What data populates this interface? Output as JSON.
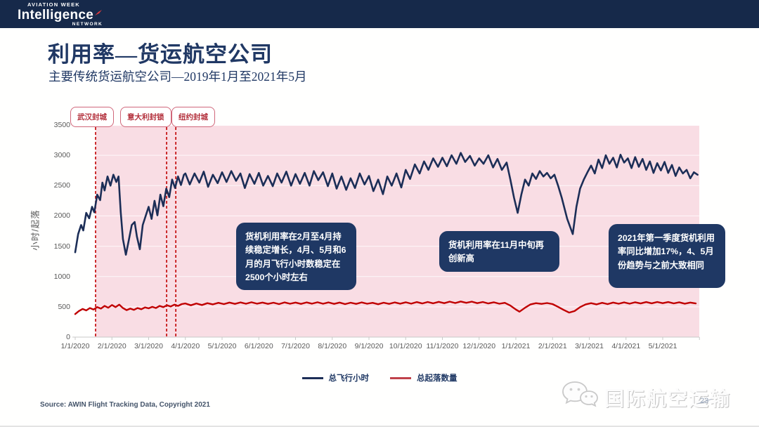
{
  "header": {
    "brand_top": "AVIATION WEEK",
    "brand_main": "Intelligence",
    "brand_bottom": "NETWORK"
  },
  "title": "利用率—货运航空公司",
  "subtitle": "主要传统货运航空公司—2019年1月至2021年5月",
  "colors": {
    "navy": "#1f3864",
    "line_navy": "#1c2e57",
    "red": "#c00000",
    "pink_region": "#f9dde4",
    "header_bg": "#16294a",
    "axis_text": "#595959",
    "grid": "rgba(255,255,255,0.75)"
  },
  "chart_data": {
    "type": "line",
    "title": "利用率—货运航空公司",
    "subtitle": "主要传统货运航空公司—2019年1月至2021年5月",
    "ylabel": "小时/起落",
    "ylim": [
      0,
      3500
    ],
    "y_ticks": [
      0,
      500,
      1000,
      1500,
      2000,
      2500,
      3000,
      3500
    ],
    "x_ticks": [
      "1/1/2020",
      "2/1/2020",
      "3/1/2020",
      "4/1/2020",
      "5/1/2020",
      "6/1/2020",
      "7/1/2020",
      "8/1/2020",
      "9/1/2020",
      "10/1/2020",
      "11/1/2020",
      "12/1/2020",
      "1/1/2021",
      "2/1/2021",
      "3/1/2021",
      "4/1/2021",
      "5/1/2021"
    ],
    "grid": true,
    "legend_position": "bottom",
    "highlight_region": {
      "from_month": 0.555,
      "to_month": 17.0,
      "color": "#f9dde4",
      "meaning": "period since Wuhan lockdown"
    },
    "series": [
      {
        "name": "总飞行小时",
        "color": "#1c2e57",
        "points": [
          [
            0,
            1400
          ],
          [
            0.08,
            1700
          ],
          [
            0.16,
            1850
          ],
          [
            0.22,
            1760
          ],
          [
            0.3,
            2050
          ],
          [
            0.38,
            1960
          ],
          [
            0.46,
            2150
          ],
          [
            0.52,
            2060
          ],
          [
            0.6,
            2350
          ],
          [
            0.68,
            2260
          ],
          [
            0.74,
            2550
          ],
          [
            0.8,
            2420
          ],
          [
            0.88,
            2650
          ],
          [
            0.96,
            2500
          ],
          [
            1.04,
            2680
          ],
          [
            1.12,
            2560
          ],
          [
            1.18,
            2650
          ],
          [
            1.24,
            2060
          ],
          [
            1.3,
            1620
          ],
          [
            1.38,
            1360
          ],
          [
            1.46,
            1600
          ],
          [
            1.54,
            1850
          ],
          [
            1.62,
            1900
          ],
          [
            1.68,
            1660
          ],
          [
            1.76,
            1450
          ],
          [
            1.84,
            1850
          ],
          [
            1.92,
            2000
          ],
          [
            2,
            2150
          ],
          [
            2.08,
            1950
          ],
          [
            2.16,
            2250
          ],
          [
            2.24,
            2010
          ],
          [
            2.32,
            2350
          ],
          [
            2.4,
            2160
          ],
          [
            2.48,
            2450
          ],
          [
            2.56,
            2310
          ],
          [
            2.64,
            2600
          ],
          [
            2.72,
            2460
          ],
          [
            2.8,
            2650
          ],
          [
            2.88,
            2510
          ],
          [
            2.96,
            2680
          ],
          [
            3,
            2700
          ],
          [
            3.12,
            2520
          ],
          [
            3.25,
            2700
          ],
          [
            3.38,
            2550
          ],
          [
            3.5,
            2730
          ],
          [
            3.62,
            2480
          ],
          [
            3.75,
            2680
          ],
          [
            3.88,
            2540
          ],
          [
            4,
            2720
          ],
          [
            4.12,
            2560
          ],
          [
            4.25,
            2740
          ],
          [
            4.38,
            2580
          ],
          [
            4.5,
            2700
          ],
          [
            4.62,
            2460
          ],
          [
            4.75,
            2690
          ],
          [
            4.88,
            2530
          ],
          [
            5,
            2710
          ],
          [
            5.12,
            2500
          ],
          [
            5.25,
            2660
          ],
          [
            5.38,
            2490
          ],
          [
            5.5,
            2700
          ],
          [
            5.62,
            2550
          ],
          [
            5.75,
            2730
          ],
          [
            5.88,
            2500
          ],
          [
            6,
            2690
          ],
          [
            6.12,
            2530
          ],
          [
            6.25,
            2710
          ],
          [
            6.38,
            2500
          ],
          [
            6.5,
            2740
          ],
          [
            6.62,
            2590
          ],
          [
            6.75,
            2720
          ],
          [
            6.88,
            2490
          ],
          [
            7,
            2700
          ],
          [
            7.12,
            2450
          ],
          [
            7.25,
            2650
          ],
          [
            7.38,
            2430
          ],
          [
            7.5,
            2620
          ],
          [
            7.62,
            2460
          ],
          [
            7.75,
            2700
          ],
          [
            7.88,
            2520
          ],
          [
            8,
            2660
          ],
          [
            8.12,
            2410
          ],
          [
            8.25,
            2600
          ],
          [
            8.38,
            2360
          ],
          [
            8.5,
            2650
          ],
          [
            8.62,
            2500
          ],
          [
            8.75,
            2700
          ],
          [
            8.88,
            2470
          ],
          [
            9,
            2760
          ],
          [
            9.12,
            2610
          ],
          [
            9.25,
            2850
          ],
          [
            9.38,
            2700
          ],
          [
            9.5,
            2900
          ],
          [
            9.62,
            2760
          ],
          [
            9.75,
            2950
          ],
          [
            9.88,
            2810
          ],
          [
            10,
            2960
          ],
          [
            10.12,
            2820
          ],
          [
            10.25,
            3000
          ],
          [
            10.38,
            2860
          ],
          [
            10.5,
            3040
          ],
          [
            10.62,
            2890
          ],
          [
            10.75,
            2990
          ],
          [
            10.88,
            2830
          ],
          [
            11,
            2950
          ],
          [
            11.12,
            2860
          ],
          [
            11.25,
            3000
          ],
          [
            11.38,
            2800
          ],
          [
            11.5,
            2940
          ],
          [
            11.62,
            2760
          ],
          [
            11.75,
            2880
          ],
          [
            11.85,
            2600
          ],
          [
            11.95,
            2300
          ],
          [
            12.05,
            2050
          ],
          [
            12.15,
            2350
          ],
          [
            12.25,
            2600
          ],
          [
            12.35,
            2500
          ],
          [
            12.45,
            2700
          ],
          [
            12.55,
            2610
          ],
          [
            12.65,
            2740
          ],
          [
            12.75,
            2650
          ],
          [
            12.85,
            2710
          ],
          [
            12.95,
            2620
          ],
          [
            13.05,
            2680
          ],
          [
            13.15,
            2500
          ],
          [
            13.25,
            2300
          ],
          [
            13.4,
            1950
          ],
          [
            13.55,
            1700
          ],
          [
            13.65,
            2150
          ],
          [
            13.75,
            2450
          ],
          [
            13.85,
            2600
          ],
          [
            13.95,
            2720
          ],
          [
            14.05,
            2830
          ],
          [
            14.15,
            2700
          ],
          [
            14.25,
            2930
          ],
          [
            14.35,
            2790
          ],
          [
            14.45,
            3000
          ],
          [
            14.55,
            2860
          ],
          [
            14.65,
            2960
          ],
          [
            14.75,
            2800
          ],
          [
            14.85,
            3010
          ],
          [
            14.95,
            2880
          ],
          [
            15.05,
            2950
          ],
          [
            15.15,
            2790
          ],
          [
            15.25,
            2970
          ],
          [
            15.35,
            2810
          ],
          [
            15.45,
            2940
          ],
          [
            15.55,
            2760
          ],
          [
            15.65,
            2900
          ],
          [
            15.75,
            2710
          ],
          [
            15.85,
            2870
          ],
          [
            15.95,
            2750
          ],
          [
            16.05,
            2890
          ],
          [
            16.15,
            2710
          ],
          [
            16.25,
            2840
          ],
          [
            16.35,
            2660
          ],
          [
            16.45,
            2800
          ],
          [
            16.55,
            2700
          ],
          [
            16.65,
            2760
          ],
          [
            16.75,
            2620
          ],
          [
            16.85,
            2720
          ],
          [
            16.95,
            2680
          ]
        ]
      },
      {
        "name": "总起落数量",
        "color": "#c00000",
        "points": [
          [
            0,
            380
          ],
          [
            0.1,
            430
          ],
          [
            0.2,
            465
          ],
          [
            0.3,
            440
          ],
          [
            0.4,
            480
          ],
          [
            0.5,
            455
          ],
          [
            0.6,
            495
          ],
          [
            0.7,
            470
          ],
          [
            0.8,
            515
          ],
          [
            0.9,
            485
          ],
          [
            1,
            530
          ],
          [
            1.1,
            495
          ],
          [
            1.2,
            535
          ],
          [
            1.3,
            480
          ],
          [
            1.4,
            445
          ],
          [
            1.5,
            470
          ],
          [
            1.6,
            450
          ],
          [
            1.7,
            480
          ],
          [
            1.8,
            460
          ],
          [
            1.9,
            490
          ],
          [
            2,
            475
          ],
          [
            2.1,
            500
          ],
          [
            2.2,
            480
          ],
          [
            2.3,
            515
          ],
          [
            2.4,
            495
          ],
          [
            2.5,
            525
          ],
          [
            2.6,
            505
          ],
          [
            2.7,
            535
          ],
          [
            2.8,
            515
          ],
          [
            2.9,
            545
          ],
          [
            3,
            555
          ],
          [
            3.15,
            525
          ],
          [
            3.3,
            555
          ],
          [
            3.45,
            530
          ],
          [
            3.6,
            560
          ],
          [
            3.75,
            540
          ],
          [
            3.9,
            565
          ],
          [
            4.05,
            545
          ],
          [
            4.2,
            570
          ],
          [
            4.35,
            548
          ],
          [
            4.5,
            572
          ],
          [
            4.65,
            550
          ],
          [
            4.8,
            575
          ],
          [
            4.95,
            552
          ],
          [
            5.1,
            570
          ],
          [
            5.25,
            548
          ],
          [
            5.4,
            568
          ],
          [
            5.55,
            545
          ],
          [
            5.7,
            572
          ],
          [
            5.85,
            550
          ],
          [
            6,
            570
          ],
          [
            6.15,
            548
          ],
          [
            6.3,
            572
          ],
          [
            6.45,
            552
          ],
          [
            6.6,
            575
          ],
          [
            6.75,
            550
          ],
          [
            6.9,
            572
          ],
          [
            7.05,
            548
          ],
          [
            7.2,
            570
          ],
          [
            7.35,
            545
          ],
          [
            7.5,
            568
          ],
          [
            7.65,
            548
          ],
          [
            7.8,
            572
          ],
          [
            7.95,
            550
          ],
          [
            8.1,
            565
          ],
          [
            8.25,
            542
          ],
          [
            8.4,
            568
          ],
          [
            8.55,
            548
          ],
          [
            8.7,
            572
          ],
          [
            8.85,
            552
          ],
          [
            9,
            575
          ],
          [
            9.15,
            552
          ],
          [
            9.3,
            578
          ],
          [
            9.45,
            555
          ],
          [
            9.6,
            580
          ],
          [
            9.75,
            558
          ],
          [
            9.9,
            582
          ],
          [
            10.05,
            560
          ],
          [
            10.2,
            585
          ],
          [
            10.35,
            562
          ],
          [
            10.5,
            588
          ],
          [
            10.65,
            565
          ],
          [
            10.8,
            585
          ],
          [
            10.95,
            560
          ],
          [
            11.1,
            580
          ],
          [
            11.25,
            555
          ],
          [
            11.4,
            575
          ],
          [
            11.55,
            550
          ],
          [
            11.7,
            565
          ],
          [
            11.85,
            520
          ],
          [
            12,
            455
          ],
          [
            12.1,
            420
          ],
          [
            12.25,
            485
          ],
          [
            12.4,
            540
          ],
          [
            12.55,
            560
          ],
          [
            12.7,
            548
          ],
          [
            12.85,
            562
          ],
          [
            13,
            545
          ],
          [
            13.15,
            500
          ],
          [
            13.3,
            450
          ],
          [
            13.45,
            405
          ],
          [
            13.6,
            430
          ],
          [
            13.75,
            495
          ],
          [
            13.9,
            540
          ],
          [
            14.05,
            560
          ],
          [
            14.2,
            540
          ],
          [
            14.35,
            565
          ],
          [
            14.5,
            545
          ],
          [
            14.65,
            570
          ],
          [
            14.8,
            550
          ],
          [
            14.95,
            572
          ],
          [
            15.1,
            552
          ],
          [
            15.25,
            575
          ],
          [
            15.4,
            555
          ],
          [
            15.55,
            578
          ],
          [
            15.7,
            558
          ],
          [
            15.85,
            580
          ],
          [
            16,
            560
          ],
          [
            16.15,
            578
          ],
          [
            16.3,
            556
          ],
          [
            16.45,
            575
          ],
          [
            16.6,
            552
          ],
          [
            16.75,
            570
          ],
          [
            16.9,
            555
          ]
        ]
      }
    ],
    "annotations": {
      "lockdown_lines": [
        {
          "label": "武汉封城",
          "month": 0.555
        },
        {
          "label": "意大利封锁",
          "month": 2.49
        },
        {
          "label": "纽约封城",
          "month": 2.74
        }
      ],
      "callouts": [
        "货机利用率在2月至4月持续稳定增长，4月、5月和6月的月飞行小时数稳定在2500个小时左右",
        "货机利用率在11月中旬再创新高",
        "2021年第一季度货机利用率同比增加17%，4、5月份趋势与之前大致相同"
      ]
    }
  },
  "legend": [
    {
      "label": "总飞行小时",
      "color": "#1c2e57"
    },
    {
      "label": "总起落数量",
      "color": "#c0424b"
    }
  ],
  "source": "Source: AWIN Flight Tracking Data, Copyright 2021",
  "watermark": {
    "text": "国际航空运输",
    "icon": "wechat-icon"
  },
  "page_number": "23"
}
